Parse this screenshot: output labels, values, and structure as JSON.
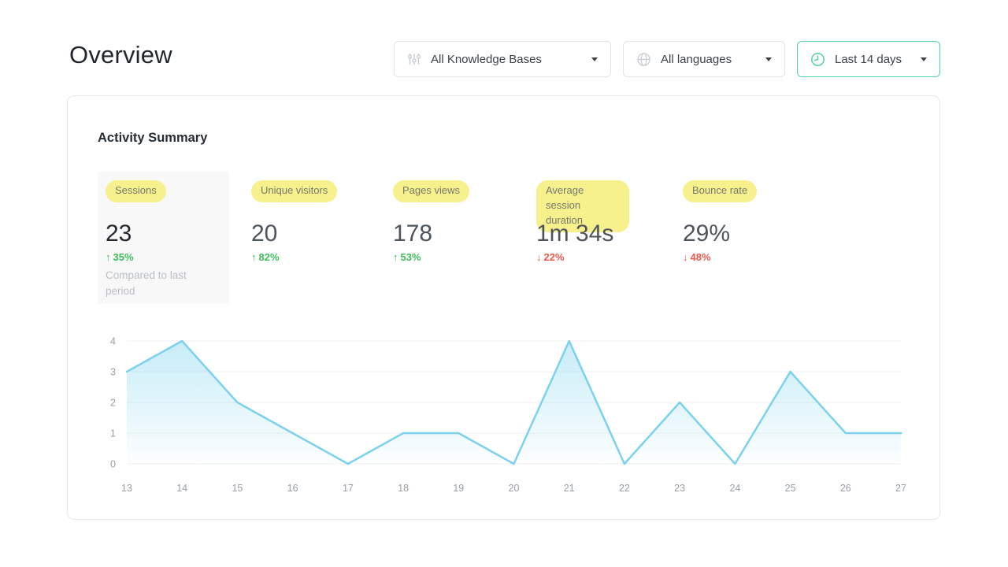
{
  "page": {
    "title": "Overview"
  },
  "filters": {
    "knowledge_bases": {
      "label": "All Knowledge Bases"
    },
    "languages": {
      "label": "All languages"
    },
    "date_range": {
      "label": "Last 14 days"
    }
  },
  "card": {
    "title": "Activity Summary",
    "metrics": [
      {
        "label": "Sessions",
        "value": "23",
        "arrow": "↑",
        "delta": "35%",
        "direction": "up",
        "note": "Compared to last period",
        "highlighted": true
      },
      {
        "label": "Unique visitors",
        "value": "20",
        "arrow": "↑",
        "delta": "82%",
        "direction": "up"
      },
      {
        "label": "Pages views",
        "value": "178",
        "arrow": "↑",
        "delta": "53%",
        "direction": "up"
      },
      {
        "label": "Average session duration",
        "value": "1m 34s",
        "arrow": "↓",
        "delta": "22%",
        "direction": "down"
      },
      {
        "label": "Bounce rate",
        "value": "29%",
        "arrow": "↓",
        "delta": "48%",
        "direction": "down"
      }
    ]
  },
  "chart_data": {
    "type": "area",
    "x": [
      13,
      14,
      15,
      16,
      17,
      18,
      19,
      20,
      21,
      22,
      23,
      24,
      25,
      26,
      27
    ],
    "values": [
      3,
      4,
      2,
      1,
      0,
      1,
      1,
      0,
      4,
      0,
      2,
      0,
      3,
      1,
      1
    ],
    "title": "",
    "xlabel": "",
    "ylabel": "",
    "ylim": [
      0,
      4
    ],
    "yticks": [
      0,
      1,
      2,
      3,
      4
    ],
    "grid": true,
    "legend": false,
    "line_color": "#7cd2ee",
    "fill_color": "#8ed9f1"
  },
  "colors": {
    "positive": "#3fbd5c",
    "negative": "#e85a4c",
    "accent": "#50d2a2",
    "highlight": "#f6f08d",
    "grid": "#efefef"
  }
}
